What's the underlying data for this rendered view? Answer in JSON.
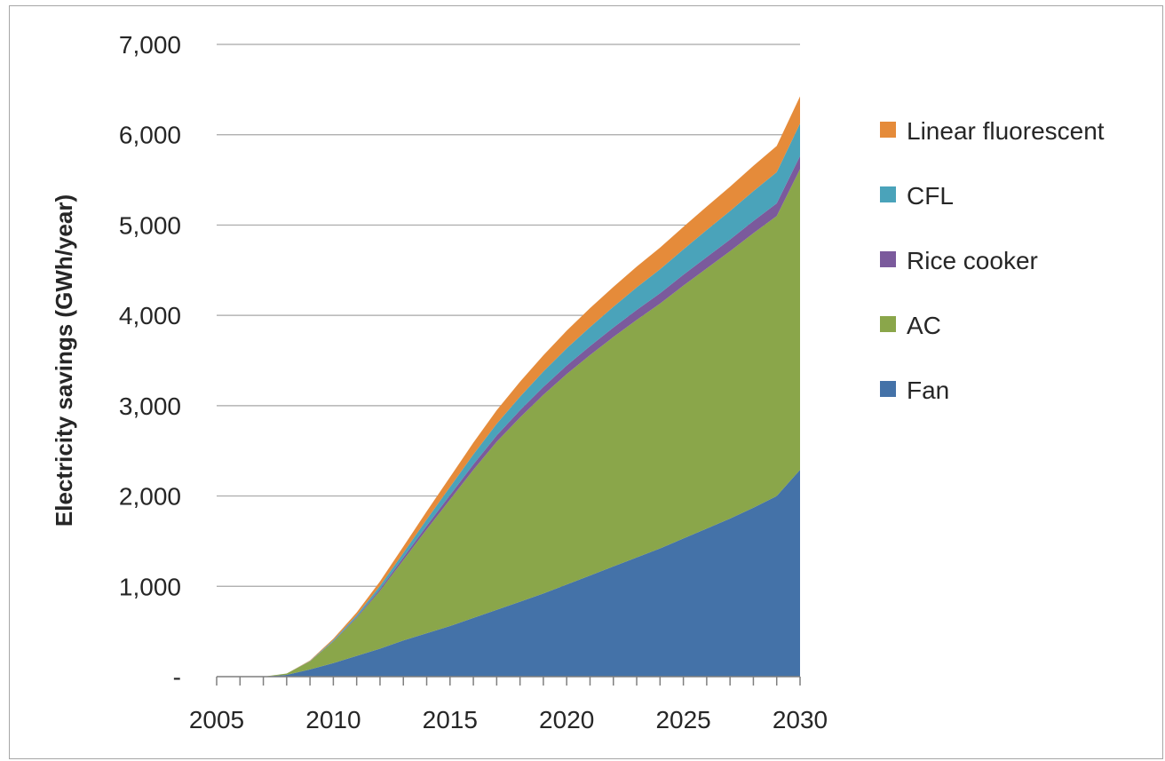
{
  "chart_data": {
    "type": "area",
    "stacked": true,
    "title": "",
    "xlabel": "",
    "ylabel": "Electricity savings (GWh/year)",
    "x": [
      2005,
      2006,
      2007,
      2008,
      2009,
      2010,
      2011,
      2012,
      2013,
      2014,
      2015,
      2016,
      2017,
      2018,
      2019,
      2020,
      2021,
      2022,
      2023,
      2024,
      2025,
      2026,
      2027,
      2028,
      2029,
      2030
    ],
    "x_ticks": [
      "2005",
      "2010",
      "2015",
      "2020",
      "2025",
      "2030"
    ],
    "y_ticks": [
      "-",
      "1,000",
      "2,000",
      "3,000",
      "4,000",
      "5,000",
      "6,000",
      "7,000"
    ],
    "ylim": [
      0,
      7000
    ],
    "xlim": [
      2005,
      2030
    ],
    "grid": "horizontal",
    "legend_position": "right",
    "series": [
      {
        "name": "Fan",
        "color": "#4472a8",
        "values": [
          0,
          0,
          0,
          20,
          80,
          150,
          230,
          310,
          400,
          480,
          560,
          650,
          740,
          830,
          920,
          1020,
          1120,
          1220,
          1320,
          1420,
          1530,
          1640,
          1750,
          1870,
          2000,
          2290
        ]
      },
      {
        "name": "AC",
        "color": "#8aa64a",
        "values": [
          0,
          0,
          0,
          15,
          90,
          240,
          420,
          640,
          890,
          1150,
          1400,
          1640,
          1860,
          2040,
          2200,
          2330,
          2440,
          2540,
          2630,
          2710,
          2800,
          2880,
          2960,
          3040,
          3100,
          3330
        ]
      },
      {
        "name": "Rice cooker",
        "color": "#7b5a9c",
        "values": [
          0,
          0,
          0,
          0,
          2,
          5,
          10,
          20,
          30,
          40,
          50,
          60,
          70,
          80,
          88,
          95,
          100,
          105,
          110,
          115,
          120,
          125,
          130,
          135,
          140,
          145
        ]
      },
      {
        "name": "CFL",
        "color": "#4aa3ba",
        "values": [
          0,
          0,
          0,
          0,
          3,
          10,
          20,
          35,
          50,
          70,
          90,
          110,
          130,
          150,
          170,
          190,
          210,
          230,
          250,
          265,
          280,
          300,
          315,
          330,
          345,
          360
        ]
      },
      {
        "name": "Linear fluorescent",
        "color": "#e58b3a",
        "values": [
          0,
          0,
          0,
          0,
          5,
          15,
          30,
          50,
          70,
          90,
          110,
          130,
          150,
          165,
          180,
          195,
          210,
          220,
          230,
          240,
          250,
          260,
          270,
          280,
          290,
          300
        ]
      }
    ],
    "legend_order": [
      "Linear fluorescent",
      "CFL",
      "Rice cooker",
      "AC",
      "Fan"
    ]
  }
}
